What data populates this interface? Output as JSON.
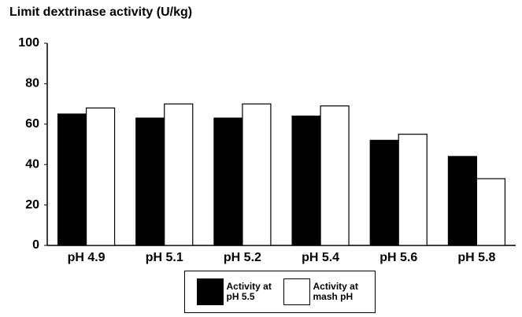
{
  "chart_data": {
    "type": "bar",
    "title": "Limit dextrinase activity (U/kg)",
    "categories": [
      "pH 4.9",
      "pH 5.1",
      "pH 5.2",
      "pH 5.4",
      "pH 5.6",
      "pH 5.8"
    ],
    "series": [
      {
        "name": "Activity at pH 5.5",
        "color": "#000000",
        "values": [
          65,
          63,
          63,
          64,
          52,
          44
        ]
      },
      {
        "name": "Activity at mash pH",
        "color": "#ffffff",
        "values": [
          68,
          70,
          70,
          69,
          55,
          33
        ]
      }
    ],
    "ylim": [
      0,
      100
    ],
    "yticks": [
      0,
      20,
      40,
      60,
      80,
      100
    ],
    "grid": false
  }
}
